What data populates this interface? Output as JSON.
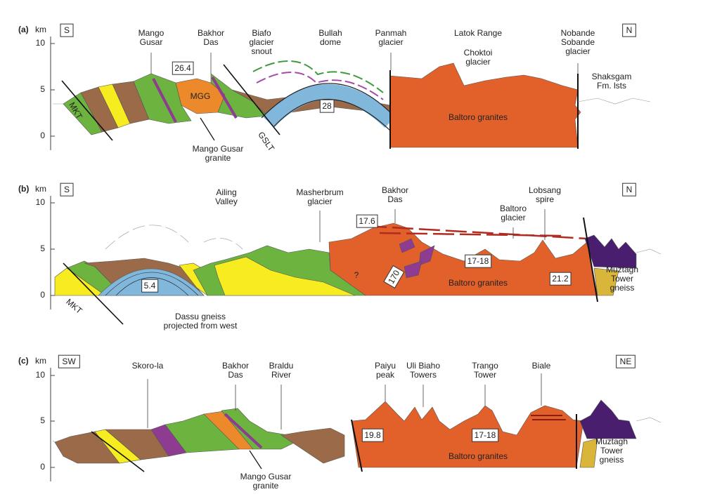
{
  "panels": [
    {
      "letter": "(a)",
      "unit": "km",
      "ticks": [
        "10",
        "5",
        "0"
      ],
      "left": "S",
      "right": "N",
      "labels": [
        [
          "Mango",
          "Gusar"
        ],
        [
          "Bakhor",
          "Das"
        ],
        [
          "Biafo",
          "glacier",
          "snout"
        ],
        [
          "Bullah",
          "dome"
        ],
        [
          "Panmah",
          "glacier"
        ],
        [
          "Latok Range"
        ],
        [
          "Choktoi",
          "glacier"
        ],
        [
          "Nobande",
          "Sobande",
          "glacier"
        ],
        [
          "Shaksgam",
          "Fm. lsts"
        ]
      ],
      "ages": [
        "26.4",
        "28"
      ],
      "units": [
        "MGG",
        "Baltoro granites"
      ],
      "faults": [
        "MKT",
        "GSLT"
      ],
      "notes": [
        [
          "Mango Gusar",
          "granite"
        ]
      ]
    },
    {
      "letter": "(b)",
      "unit": "km",
      "ticks": [
        "10",
        "5",
        "0"
      ],
      "left": "S",
      "right": "N",
      "labels": [
        [
          "Ailing",
          "Valley"
        ],
        [
          "Masherbrum",
          "glacier"
        ],
        [
          "Bakhor",
          "Das"
        ],
        [
          "Lobsang",
          "spire"
        ],
        [
          "Baltoro",
          "glacier"
        ]
      ],
      "ages": [
        "17.6",
        "17-18",
        "170",
        "21.2",
        "5.4"
      ],
      "units": [
        "Baltoro granites",
        [
          "Muztagh",
          "Tower",
          "gneiss"
        ]
      ],
      "faults": [
        "MKT"
      ],
      "notes": [
        [
          "Dassu gneiss",
          "projected from west"
        ],
        "?"
      ]
    },
    {
      "letter": "(c)",
      "unit": "km",
      "ticks": [
        "10",
        "5",
        "0"
      ],
      "left": "SW",
      "right": "NE",
      "labels": [
        [
          "Skoro-la"
        ],
        [
          "Bakhor",
          "Das"
        ],
        [
          "Braldu",
          "River"
        ],
        [
          "Paiyu",
          "peak"
        ],
        [
          "Uli Biaho",
          "Towers"
        ],
        [
          "Trango",
          "Tower"
        ],
        [
          "Biale"
        ]
      ],
      "ages": [
        "19.8",
        "17-18"
      ],
      "units": [
        "Baltoro granites",
        [
          "Muztagh",
          "Tower",
          "gneiss"
        ]
      ],
      "faults": [],
      "notes": [
        [
          "Mango Gusar",
          "granite"
        ]
      ]
    }
  ]
}
